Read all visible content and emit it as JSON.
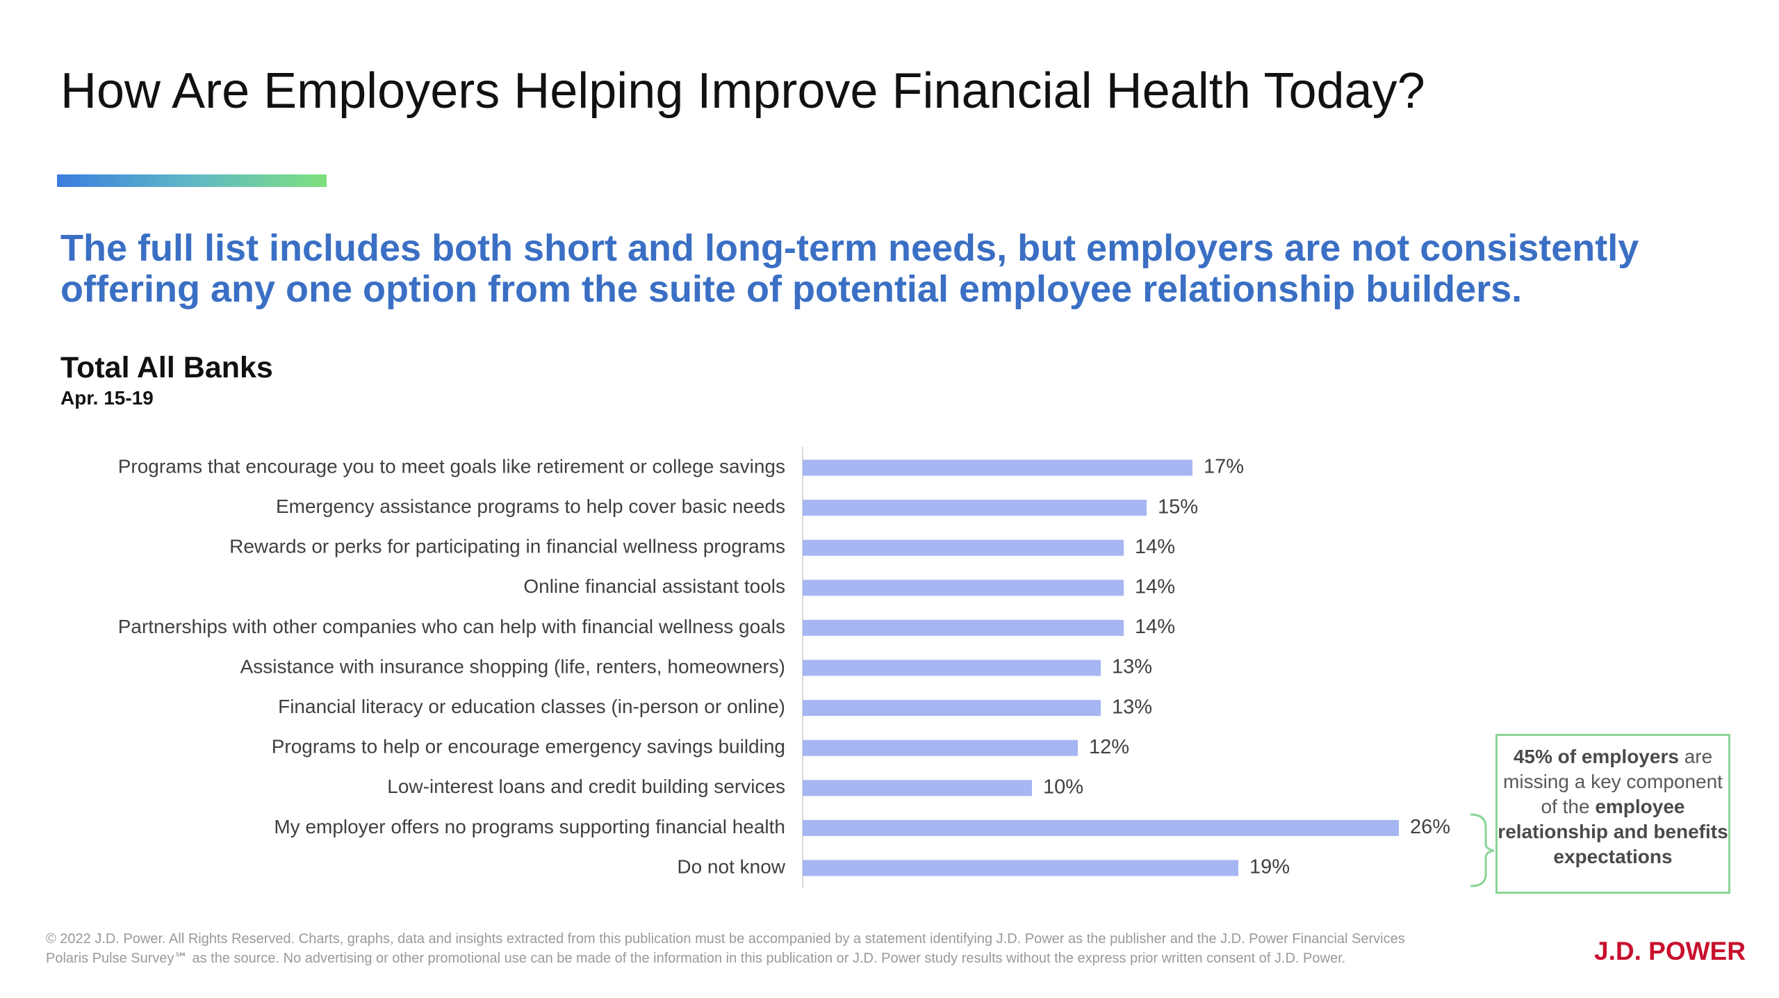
{
  "header": {
    "title": "How Are Employers Helping Improve Financial Health Today?",
    "subtitle_lines": [
      "The full list includes both short and long-term needs, but employers are not consistently",
      "offering any one option from the suite of potential employee relationship builders."
    ]
  },
  "chart_data": {
    "type": "bar",
    "orientation": "horizontal",
    "title": "Total All Banks",
    "subtitle": "Apr. 15-19",
    "categories": [
      "Programs that encourage you to meet goals like retirement or college savings",
      "Emergency assistance programs to help cover basic needs",
      "Rewards or perks for participating in financial wellness programs",
      "Online financial assistant tools",
      "Partnerships with other companies who can help with financial wellness goals",
      "Assistance with insurance shopping (life, renters, homeowners)",
      "Financial literacy or education classes (in-person or online)",
      "Programs to help or encourage emergency savings building",
      "Low-interest loans and credit building services",
      "My employer offers no programs supporting financial health",
      "Do not know"
    ],
    "values": [
      17,
      15,
      14,
      14,
      14,
      13,
      13,
      12,
      10,
      26,
      19
    ],
    "value_labels": [
      "17%",
      "15%",
      "14%",
      "14%",
      "14%",
      "13%",
      "13%",
      "12%",
      "10%",
      "26%",
      "19%"
    ],
    "color": "#a6b6f3",
    "annotation": [
      {
        "text": "45% of employers",
        "bold": true
      },
      {
        "text": " are missing a key component of the ",
        "bold": false
      },
      {
        "text": "employee relationship and benefits expectations",
        "bold": true
      }
    ]
  },
  "footer": {
    "lines": [
      "© 2022 J.D. Power. All Rights Reserved. Charts, graphs, data and insights extracted from this publication must be accompanied by a statement identifying J.D. Power as the publisher and the J.D. Power Financial Services",
      "Polaris Pulse Survey℠ as the source. No advertising or other promotional use can be made of the information in this publication or J.D. Power study results without the express prior written consent of J.D. Power."
    ],
    "logo": "J.D. POWER"
  }
}
